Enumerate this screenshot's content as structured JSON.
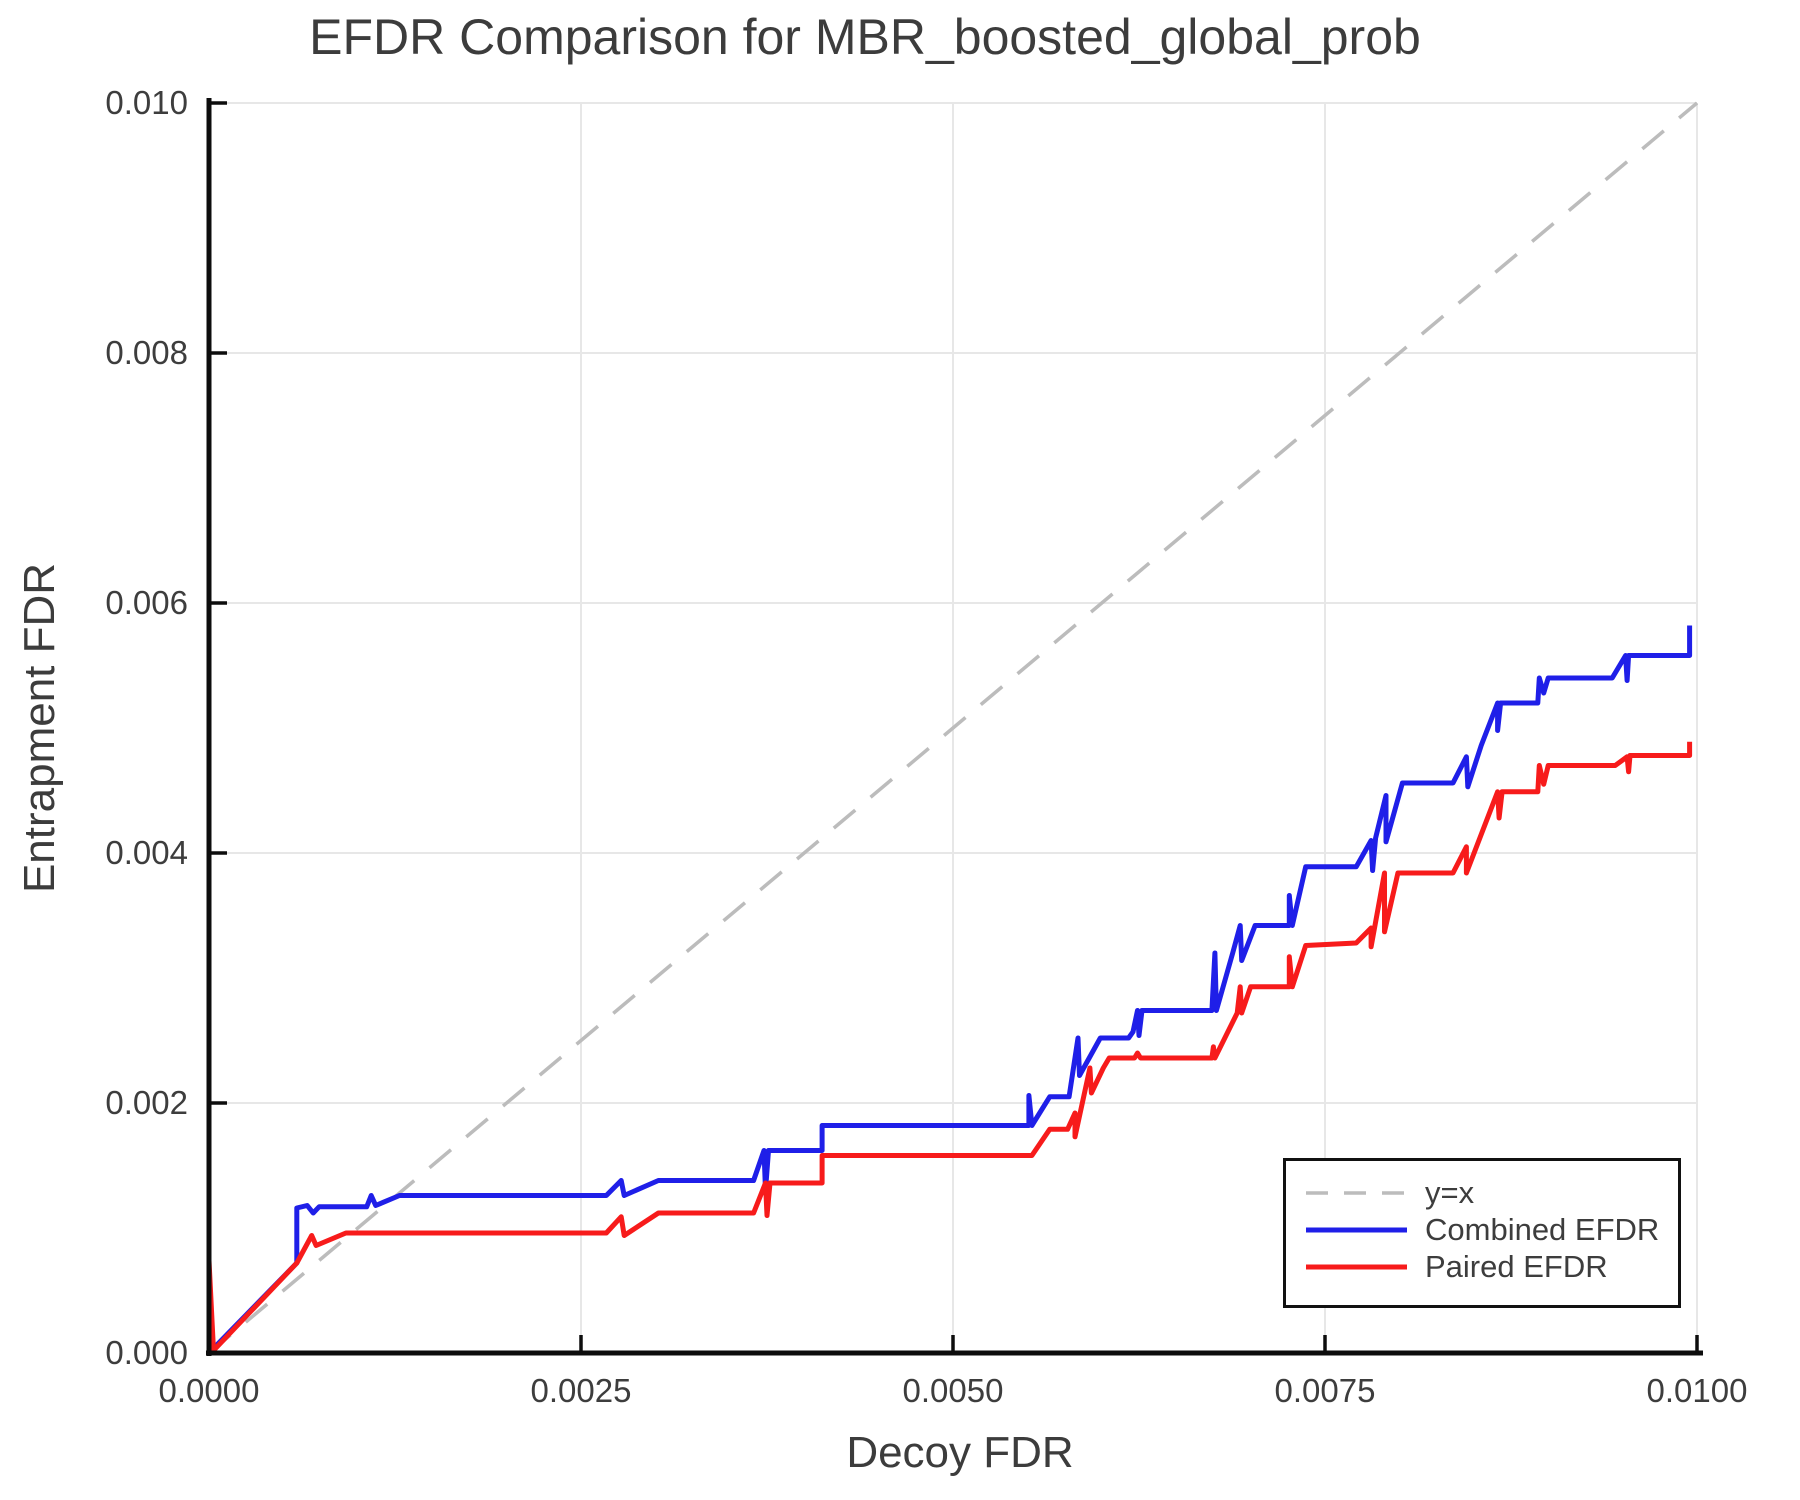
{
  "title": "EFDR Comparison for MBR_boosted_global_prob",
  "axes": {
    "xlabel": "Decoy FDR",
    "ylabel": "Entrapment FDR",
    "x_tick_labels": [
      "0.0000",
      "0.0025",
      "0.0050",
      "0.0075",
      "0.0100"
    ],
    "x_tick_values": [
      0,
      0.0025,
      0.005,
      0.0075,
      0.01
    ],
    "y_tick_labels": [
      "0.000",
      "0.002",
      "0.004",
      "0.006",
      "0.008",
      "0.010"
    ],
    "y_tick_values": [
      0,
      0.002,
      0.004,
      0.006,
      0.008,
      0.01
    ]
  },
  "colors": {
    "identity": "#bcbcbc",
    "combined": "#1f1fe8",
    "paired": "#f71b1b",
    "grid": "#e7e7e7",
    "spine": "#0d0d0d",
    "text": "#3d3d3d"
  },
  "chart_data": {
    "type": "line",
    "title": "EFDR Comparison for MBR_boosted_global_prob",
    "xlabel": "Decoy FDR",
    "ylabel": "Entrapment FDR",
    "xlim": [
      0,
      0.01
    ],
    "ylim": [
      0,
      0.01
    ],
    "grid": true,
    "legend_position": "lower right",
    "series": [
      {
        "name": "y=x",
        "color": "#bcbcbc",
        "style": "dashed",
        "width": 3.5,
        "points": [
          [
            0,
            0
          ],
          [
            0.01,
            0.01
          ]
        ]
      },
      {
        "name": "Combined EFDR",
        "color": "#1f1fe8",
        "style": "solid",
        "width": 5,
        "points": [
          [
            0.0,
            0.0
          ],
          [
            0.00059,
            0.00072
          ],
          [
            0.00059,
            0.00116
          ],
          [
            0.00066,
            0.00118
          ],
          [
            0.0007,
            0.00112
          ],
          [
            0.00074,
            0.00117
          ],
          [
            0.00106,
            0.00117
          ],
          [
            0.00109,
            0.00126
          ],
          [
            0.00112,
            0.00118
          ],
          [
            0.00128,
            0.00126
          ],
          [
            0.00267,
            0.00126
          ],
          [
            0.00277,
            0.00138
          ],
          [
            0.00279,
            0.00126
          ],
          [
            0.00302,
            0.00138
          ],
          [
            0.00366,
            0.00138
          ],
          [
            0.00373,
            0.00162
          ],
          [
            0.00374,
            0.0013
          ],
          [
            0.00376,
            0.00162
          ],
          [
            0.00412,
            0.00162
          ],
          [
            0.00412,
            0.00182
          ],
          [
            0.00551,
            0.00182
          ],
          [
            0.00551,
            0.00206
          ],
          [
            0.00553,
            0.00182
          ],
          [
            0.00565,
            0.00205
          ],
          [
            0.00578,
            0.00205
          ],
          [
            0.00584,
            0.00252
          ],
          [
            0.00585,
            0.00222
          ],
          [
            0.00599,
            0.00252
          ],
          [
            0.00618,
            0.00252
          ],
          [
            0.00621,
            0.00257
          ],
          [
            0.00624,
            0.00274
          ],
          [
            0.00625,
            0.00254
          ],
          [
            0.00627,
            0.00274
          ],
          [
            0.00674,
            0.00274
          ],
          [
            0.00676,
            0.0032
          ],
          [
            0.00677,
            0.00274
          ],
          [
            0.00688,
            0.0032
          ],
          [
            0.00693,
            0.00342
          ],
          [
            0.00694,
            0.00314
          ],
          [
            0.00703,
            0.00342
          ],
          [
            0.00726,
            0.00342
          ],
          [
            0.00726,
            0.00366
          ],
          [
            0.00728,
            0.00342
          ],
          [
            0.00737,
            0.00389
          ],
          [
            0.00771,
            0.00389
          ],
          [
            0.00781,
            0.0041
          ],
          [
            0.00782,
            0.00386
          ],
          [
            0.00784,
            0.00412
          ],
          [
            0.00791,
            0.00446
          ],
          [
            0.00791,
            0.00409
          ],
          [
            0.00802,
            0.00456
          ],
          [
            0.00836,
            0.00456
          ],
          [
            0.00845,
            0.00477
          ],
          [
            0.00846,
            0.00453
          ],
          [
            0.00855,
            0.00486
          ],
          [
            0.00866,
            0.0052
          ],
          [
            0.00866,
            0.00498
          ],
          [
            0.00868,
            0.0052
          ],
          [
            0.00893,
            0.0052
          ],
          [
            0.00894,
            0.0054
          ],
          [
            0.00897,
            0.00528
          ],
          [
            0.009,
            0.0054
          ],
          [
            0.00943,
            0.0054
          ],
          [
            0.00952,
            0.00558
          ],
          [
            0.00953,
            0.00538
          ],
          [
            0.00954,
            0.00558
          ],
          [
            0.00995,
            0.00558
          ],
          [
            0.00995,
            0.00582
          ]
        ]
      },
      {
        "name": "Paired EFDR",
        "color": "#f71b1b",
        "style": "solid",
        "width": 5,
        "points": [
          [
            0.0,
            0.0
          ],
          [
            0.0,
            0.00074
          ],
          [
            3e-05,
            2e-05
          ],
          [
            0.00059,
            0.00072
          ],
          [
            0.00069,
            0.00094
          ],
          [
            0.00072,
            0.00086
          ],
          [
            0.00092,
            0.00096
          ],
          [
            0.00267,
            0.00096
          ],
          [
            0.00277,
            0.00109
          ],
          [
            0.00279,
            0.00094
          ],
          [
            0.00302,
            0.00112
          ],
          [
            0.00366,
            0.00112
          ],
          [
            0.00374,
            0.00136
          ],
          [
            0.00375,
            0.0011
          ],
          [
            0.00377,
            0.00136
          ],
          [
            0.00412,
            0.00136
          ],
          [
            0.00412,
            0.00158
          ],
          [
            0.00553,
            0.00158
          ],
          [
            0.00565,
            0.00179
          ],
          [
            0.00577,
            0.00179
          ],
          [
            0.00582,
            0.00192
          ],
          [
            0.00582,
            0.00173
          ],
          [
            0.00592,
            0.00228
          ],
          [
            0.00593,
            0.00208
          ],
          [
            0.00601,
            0.00228
          ],
          [
            0.00605,
            0.00236
          ],
          [
            0.00622,
            0.00236
          ],
          [
            0.00624,
            0.0024
          ],
          [
            0.00626,
            0.00236
          ],
          [
            0.00674,
            0.00236
          ],
          [
            0.00675,
            0.00245
          ],
          [
            0.00676,
            0.00236
          ],
          [
            0.00691,
            0.00272
          ],
          [
            0.00693,
            0.00293
          ],
          [
            0.00694,
            0.00272
          ],
          [
            0.007,
            0.00293
          ],
          [
            0.00726,
            0.00293
          ],
          [
            0.00726,
            0.00317
          ],
          [
            0.00728,
            0.00293
          ],
          [
            0.00737,
            0.00326
          ],
          [
            0.00771,
            0.00328
          ],
          [
            0.00781,
            0.0034
          ],
          [
            0.00781,
            0.00325
          ],
          [
            0.0079,
            0.00384
          ],
          [
            0.0079,
            0.00337
          ],
          [
            0.00799,
            0.00384
          ],
          [
            0.00836,
            0.00384
          ],
          [
            0.00845,
            0.00405
          ],
          [
            0.00845,
            0.00384
          ],
          [
            0.00866,
            0.00449
          ],
          [
            0.00867,
            0.00428
          ],
          [
            0.00869,
            0.00449
          ],
          [
            0.00893,
            0.00449
          ],
          [
            0.00894,
            0.0047
          ],
          [
            0.00897,
            0.00455
          ],
          [
            0.009,
            0.0047
          ],
          [
            0.00945,
            0.0047
          ],
          [
            0.00953,
            0.00477
          ],
          [
            0.00954,
            0.00465
          ],
          [
            0.00955,
            0.00478
          ],
          [
            0.00995,
            0.00478
          ],
          [
            0.00995,
            0.00489
          ]
        ]
      }
    ]
  },
  "legend": {
    "entries": [
      {
        "label": "y=x"
      },
      {
        "label": "Combined EFDR"
      },
      {
        "label": "Paired EFDR"
      }
    ]
  }
}
